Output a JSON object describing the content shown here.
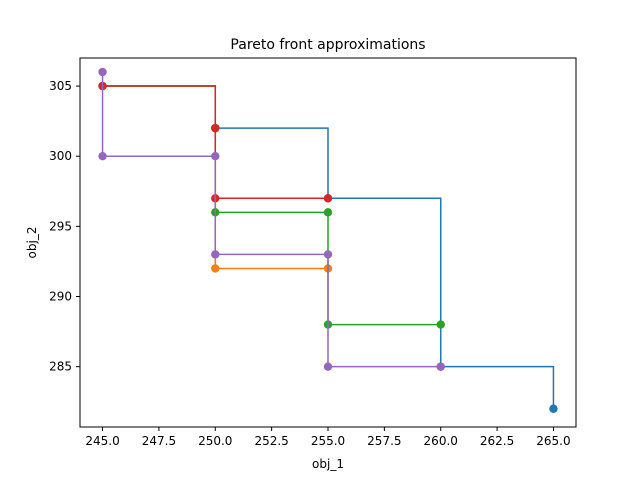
{
  "chart_data": {
    "type": "line",
    "title": "Pareto front approximations",
    "xlabel": "obj_1",
    "ylabel": "obj_2",
    "xlim": [
      244.0,
      266.0
    ],
    "ylim": [
      280.7,
      307.0
    ],
    "xticks": [
      245.0,
      247.5,
      250.0,
      252.5,
      255.0,
      257.5,
      260.0,
      262.5,
      265.0
    ],
    "xtick_labels": [
      "245.0",
      "247.5",
      "250.0",
      "252.5",
      "255.0",
      "257.5",
      "260.0",
      "262.5",
      "265.0"
    ],
    "yticks": [
      285,
      290,
      295,
      300,
      305
    ],
    "ytick_labels": [
      "285",
      "290",
      "295",
      "300",
      "305"
    ],
    "grid": false,
    "legend": "none",
    "line_style": "step-post with markers",
    "series": [
      {
        "color": "#1f77b4",
        "points": [
          [
            245,
            305
          ],
          [
            250,
            302
          ],
          [
            255,
            297
          ],
          [
            260,
            285
          ],
          [
            265,
            282
          ]
        ]
      },
      {
        "color": "#ff7f0e",
        "points": [
          [
            245,
            305
          ],
          [
            250,
            292
          ],
          [
            255,
            292
          ]
        ]
      },
      {
        "color": "#2ca02c",
        "points": [
          [
            245,
            305
          ],
          [
            250,
            296
          ],
          [
            255,
            296
          ],
          [
            255,
            288
          ],
          [
            260,
            288
          ]
        ]
      },
      {
        "color": "#d62728",
        "points": [
          [
            245,
            305
          ],
          [
            250,
            302
          ],
          [
            250,
            302
          ],
          [
            250,
            297
          ],
          [
            255,
            297
          ]
        ]
      },
      {
        "color": "#9467bd",
        "points": [
          [
            245,
            306
          ],
          [
            245,
            300
          ],
          [
            250,
            300
          ],
          [
            250,
            293
          ],
          [
            255,
            293
          ],
          [
            255,
            285
          ],
          [
            260,
            285
          ]
        ]
      }
    ]
  }
}
